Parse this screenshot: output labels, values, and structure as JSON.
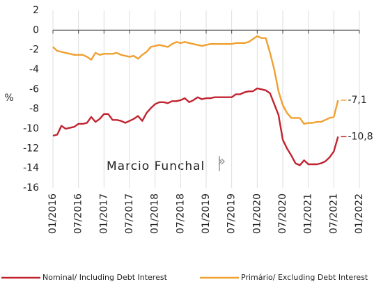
{
  "chart_data": {
    "type": "line",
    "y_label": "%",
    "watermark": "Marcio Funchal",
    "x": [
      "01/2016",
      "02/2016",
      "03/2016",
      "04/2016",
      "05/2016",
      "06/2016",
      "07/2016",
      "08/2016",
      "09/2016",
      "10/2016",
      "11/2016",
      "12/2016",
      "01/2017",
      "02/2017",
      "03/2017",
      "04/2017",
      "05/2017",
      "06/2017",
      "07/2017",
      "08/2017",
      "09/2017",
      "10/2017",
      "11/2017",
      "12/2017",
      "01/2018",
      "02/2018",
      "03/2018",
      "04/2018",
      "05/2018",
      "06/2018",
      "07/2018",
      "08/2018",
      "09/2018",
      "10/2018",
      "11/2018",
      "12/2018",
      "01/2019",
      "02/2019",
      "03/2019",
      "04/2019",
      "05/2019",
      "06/2019",
      "07/2019",
      "08/2019",
      "09/2019",
      "10/2019",
      "11/2019",
      "12/2019",
      "01/2020",
      "02/2020",
      "03/2020",
      "04/2020",
      "05/2020",
      "06/2020",
      "07/2020",
      "08/2020",
      "09/2020",
      "10/2020",
      "11/2020",
      "12/2020",
      "01/2021",
      "02/2021",
      "03/2021",
      "04/2021",
      "05/2021",
      "06/2021",
      "07/2021",
      "08/2021"
    ],
    "xlim": [
      "01/2016",
      "01/2022"
    ],
    "xticks": [
      "01/2016",
      "07/2016",
      "01/2017",
      "07/2017",
      "01/2018",
      "07/2018",
      "01/2019",
      "07/2019",
      "01/2020",
      "07/2020",
      "01/2021",
      "07/2021",
      "01/2022"
    ],
    "ylim": [
      -16,
      2
    ],
    "yticks": [
      -16,
      -14,
      -12,
      -10,
      -8,
      -6,
      -4,
      -2,
      0,
      2
    ],
    "series": [
      {
        "name": "Nominal/ Including Debt Interest",
        "color": "#c0232f",
        "end_label": "-10,8",
        "values": [
          -10.7,
          -10.6,
          -9.7,
          -10.0,
          -9.9,
          -9.8,
          -9.5,
          -9.5,
          -9.4,
          -8.8,
          -9.3,
          -9.0,
          -8.5,
          -8.5,
          -9.1,
          -9.1,
          -9.2,
          -9.4,
          -9.2,
          -9.0,
          -8.7,
          -9.2,
          -8.4,
          -7.9,
          -7.5,
          -7.3,
          -7.3,
          -7.4,
          -7.2,
          -7.2,
          -7.1,
          -6.9,
          -7.3,
          -7.1,
          -6.8,
          -7.0,
          -6.9,
          -6.9,
          -6.8,
          -6.8,
          -6.8,
          -6.8,
          -6.8,
          -6.5,
          -6.5,
          -6.3,
          -6.2,
          -6.2,
          -5.9,
          -6.0,
          -6.1,
          -6.4,
          -7.5,
          -8.6,
          -11.1,
          -12.0,
          -12.7,
          -13.5,
          -13.7,
          -13.2,
          -13.6,
          -13.6,
          -13.6,
          -13.5,
          -13.3,
          -12.9,
          -12.3,
          -10.8
        ]
      },
      {
        "name": "Primário/ Excluding Debt Interest",
        "color": "#f0a030",
        "end_label": "-7,1",
        "values": [
          -1.7,
          -2.1,
          -2.2,
          -2.3,
          -2.4,
          -2.5,
          -2.5,
          -2.5,
          -2.7,
          -3.0,
          -2.3,
          -2.5,
          -2.4,
          -2.4,
          -2.4,
          -2.3,
          -2.5,
          -2.6,
          -2.7,
          -2.6,
          -2.9,
          -2.5,
          -2.2,
          -1.7,
          -1.6,
          -1.5,
          -1.6,
          -1.7,
          -1.4,
          -1.2,
          -1.3,
          -1.2,
          -1.3,
          -1.4,
          -1.5,
          -1.6,
          -1.5,
          -1.4,
          -1.4,
          -1.4,
          -1.4,
          -1.4,
          -1.4,
          -1.3,
          -1.3,
          -1.3,
          -1.2,
          -0.9,
          -0.6,
          -0.8,
          -0.8,
          -2.3,
          -4.0,
          -6.2,
          -7.6,
          -8.4,
          -8.9,
          -8.9,
          -8.9,
          -9.5,
          -9.4,
          -9.4,
          -9.3,
          -9.3,
          -9.1,
          -8.9,
          -8.8,
          -7.1
        ]
      }
    ]
  }
}
